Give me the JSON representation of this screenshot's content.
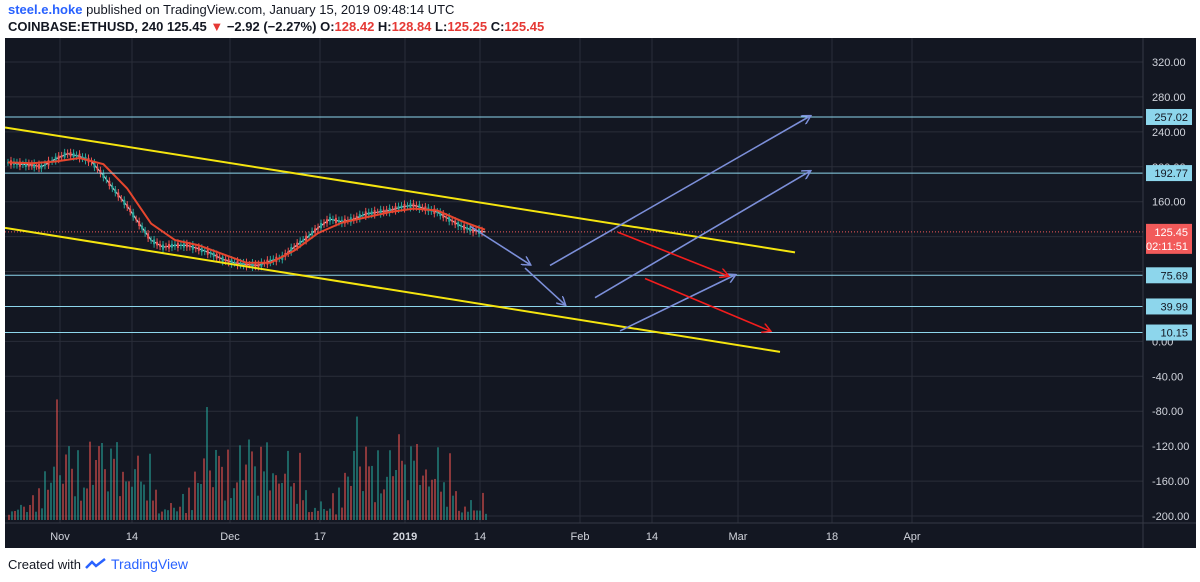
{
  "header": {
    "author": "steel.e.hoke",
    "published_text": "published on TradingView.com, January 15, 2019 09:48:14 UTC",
    "symbol": "COINBASE:ETHUSD, 240",
    "last": "125.45",
    "change_arrow": "▼",
    "change": "−2.92 (−2.27%)",
    "open_label": "O:",
    "open": "128.42",
    "high_label": "H:",
    "high": "128.84",
    "low_label": "L:",
    "low": "125.25",
    "close_label": "C:",
    "close": "125.45"
  },
  "footer": {
    "created_with": "Created with",
    "brand": "TradingView",
    "logo_icon": "tradingview-logo-icon"
  },
  "colors": {
    "background": "#131722",
    "grid": "#2a2e39",
    "axis_text": "#d1d4dc",
    "ma_line": "#e6462e",
    "channel": "#f5e50f",
    "projection_blue": "#7c8fd9",
    "projection_red": "#f21d1d",
    "level_line": "#8dd6ec",
    "price_label_bg": "#8dd6ec",
    "current_price": "#f25a5a",
    "up_volume": "#26a69a",
    "down_volume": "#ef5350"
  },
  "chart_data": {
    "type": "line",
    "series_kind": "candlestick_with_volume_and_drawings",
    "y_axis_ticks": [
      "320.00",
      "280.00",
      "240.00",
      "200.00",
      "160.00",
      "120.00",
      "80.00",
      "40.00",
      "0.00",
      "-40.00",
      "-80.00",
      "-120.00",
      "-160.00",
      "-200.00"
    ],
    "y_axis_values": [
      320,
      280,
      240,
      200,
      160,
      120,
      80,
      40,
      0,
      -40,
      -80,
      -120,
      -160,
      -200
    ],
    "x_axis_ticks": [
      "Nov",
      "14",
      "Dec",
      "17",
      "2019",
      "14",
      "Feb",
      "14",
      "Mar",
      "18",
      "Apr"
    ],
    "x_axis_ticks_bold": [
      "2019"
    ],
    "price_line": {
      "x_index": [
        0,
        5,
        10,
        14,
        20,
        25,
        30,
        35,
        40,
        45,
        50,
        55,
        60,
        65,
        70,
        75,
        80,
        85,
        90,
        95,
        100,
        105,
        110,
        115,
        120,
        125,
        130,
        135,
        140,
        145,
        150,
        155,
        160,
        165,
        170,
        175,
        180,
        185,
        190,
        195,
        200
      ],
      "y": [
        205,
        203,
        202,
        200,
        209,
        215,
        212,
        206,
        190,
        172,
        155,
        135,
        116,
        108,
        110,
        110,
        106,
        101,
        94,
        90,
        88,
        87,
        92,
        96,
        108,
        118,
        130,
        140,
        137,
        140,
        146,
        148,
        150,
        154,
        156,
        152,
        148,
        140,
        132,
        127,
        125.45
      ]
    },
    "moving_average": {
      "x_index": [
        0,
        10,
        20,
        30,
        40,
        50,
        60,
        70,
        80,
        90,
        100,
        110,
        120,
        130,
        140,
        150,
        160,
        170,
        180,
        190,
        200
      ],
      "y": [
        205,
        204,
        206,
        210,
        203,
        175,
        135,
        116,
        110,
        100,
        90,
        90,
        104,
        124,
        136,
        142,
        148,
        152,
        150,
        138,
        128
      ]
    },
    "volume": {
      "values": [
        12,
        8,
        15,
        10,
        20,
        14,
        9,
        18,
        25,
        12,
        30,
        22,
        45,
        60,
        35,
        80,
        120,
        55,
        40,
        70,
        95,
        50,
        38,
        65,
        42,
        30,
        55,
        75,
        48,
        62,
        85,
        90,
        52,
        40,
        68,
        110,
        72,
        50,
        45,
        60,
        38,
        42,
        55,
        70,
        48,
        35,
        30,
        62,
        40,
        28
      ]
    },
    "horizontal_levels": [
      {
        "value": 257.02,
        "label": "257.02"
      },
      {
        "value": 192.77,
        "label": "192.77"
      },
      {
        "value": 75.69,
        "label": "75.69"
      },
      {
        "value": 39.99,
        "label": "39.99"
      },
      {
        "value": 10.15,
        "label": "10.15"
      }
    ],
    "current_price": {
      "value": 125.45,
      "label": "125.45",
      "countdown": "02:11:51"
    },
    "channel_upper": {
      "x": [
        0,
        790
      ],
      "y": [
        245,
        102
      ]
    },
    "channel_lower": {
      "x": [
        0,
        775
      ],
      "y": [
        130,
        -12
      ]
    },
    "projection_arrows_blue": [
      {
        "from": [
          470,
          132
        ],
        "to": [
          530,
          88
        ]
      },
      {
        "from": [
          525,
          84
        ],
        "to": [
          565,
          42
        ]
      },
      {
        "from": [
          550,
          87
        ],
        "to": [
          810,
          258
        ]
      },
      {
        "from": [
          595,
          50
        ],
        "to": [
          810,
          195
        ]
      },
      {
        "from": [
          620,
          12
        ],
        "to": [
          735,
          76
        ]
      }
    ],
    "projection_arrows_red": [
      {
        "from": [
          618,
          125
        ],
        "to": [
          728,
          75
        ]
      },
      {
        "from": [
          645,
          72
        ],
        "to": [
          770,
          12
        ]
      }
    ]
  }
}
